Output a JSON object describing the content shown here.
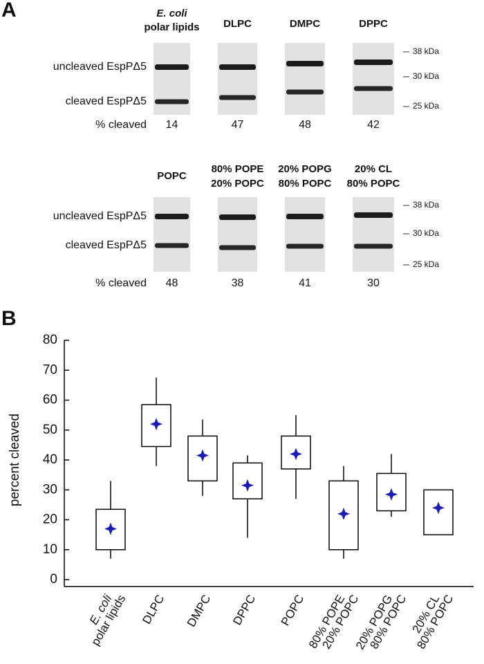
{
  "panel_a": {
    "label": "A",
    "rows": [
      {
        "headers": [
          [
            "E. coli",
            "polar lipids"
          ],
          [
            "DLPC"
          ],
          [
            "DMPC"
          ],
          [
            "DPPC"
          ]
        ],
        "row_labels": [
          "uncleaved EspPΔ5",
          "cleaved EspPΔ5"
        ],
        "markers": [
          "38 kDa",
          "30 kDa",
          "25 kDa"
        ],
        "cleaved_label": "% cleaved",
        "cleaved_values": [
          "14",
          "47",
          "48",
          "42"
        ]
      },
      {
        "headers": [
          [
            "POPC"
          ],
          [
            "80% POPE",
            "20% POPC"
          ],
          [
            "20% POPG",
            "80% POPC"
          ],
          [
            "20% CL",
            "80% POPC"
          ]
        ],
        "row_labels": [
          "uncleaved EspPΔ5",
          "cleaved EspPΔ5"
        ],
        "markers": [
          "38 kDa",
          "30 kDa",
          "25 kDa"
        ],
        "cleaved_label": "% cleaved",
        "cleaved_values": [
          "48",
          "38",
          "41",
          "30"
        ]
      }
    ]
  },
  "chart_data": {
    "type": "box",
    "panel_label": "B",
    "y_label": "percent cleaved",
    "categories": [
      [
        "E. coli",
        "polar lipids"
      ],
      [
        "DLPC"
      ],
      [
        "DMPC"
      ],
      [
        "DPPC"
      ],
      [
        "POPC"
      ],
      [
        "80% POPE",
        "20% POPC"
      ],
      [
        "20% POPG",
        "80% POPC"
      ],
      [
        "20% CL",
        "80% POPC"
      ]
    ],
    "whisker_low": [
      7,
      38,
      28,
      14,
      27,
      7,
      21,
      null
    ],
    "q1": [
      10,
      44.5,
      33,
      27,
      37,
      10,
      23,
      15
    ],
    "q3": [
      23.5,
      58.5,
      48,
      39,
      48,
      33,
      35.5,
      30
    ],
    "whisker_high": [
      33,
      67.5,
      53.5,
      41.5,
      55,
      38,
      42,
      null
    ],
    "mean": [
      17,
      52,
      41.5,
      31.5,
      42,
      22,
      28.5,
      24
    ],
    "mean_color": "#1c1cb0",
    "ylim": [
      0,
      80
    ],
    "yticks": [
      0,
      10,
      20,
      30,
      40,
      50,
      60,
      70,
      80
    ]
  }
}
